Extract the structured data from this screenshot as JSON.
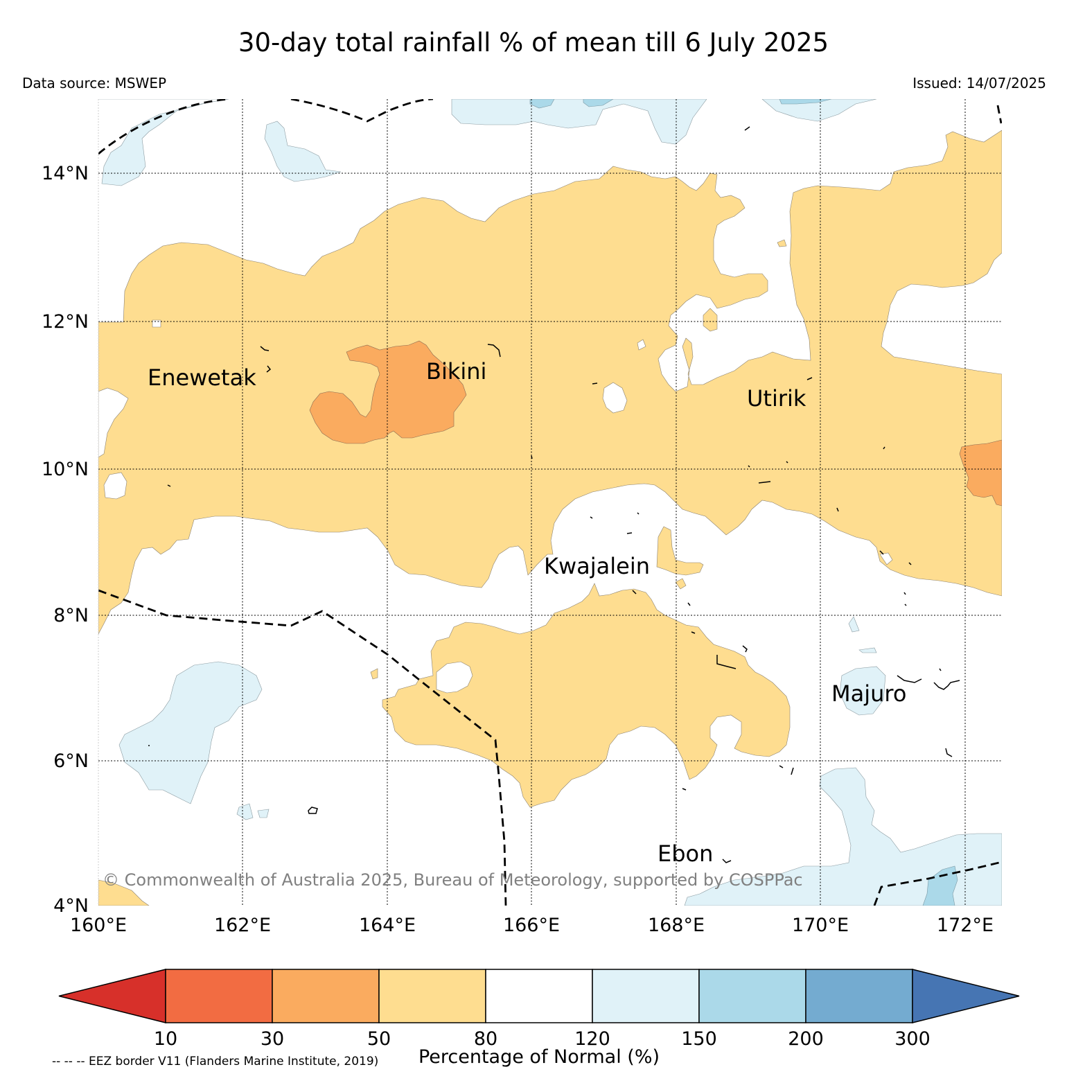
{
  "title": "30-day total rainfall % of mean till 6 July 2025",
  "data_source": "Data source: MSWEP",
  "issued": "Issued: 14/07/2025",
  "copyright": "© Commonwealth of Australia 2025, Bureau of Meteorology, supported by COSPPac",
  "lon_labels": [
    "160°E",
    "162°E",
    "164°E",
    "166°E",
    "168°E",
    "170°E",
    "172°E"
  ],
  "lat_labels": [
    "14°N",
    "12°N",
    "10°N",
    "8°N",
    "6°N",
    "4°N"
  ],
  "places": [
    "Enewetak",
    "Bikini",
    "Utirik",
    "Kwajalein",
    "Majuro",
    "Ebon"
  ],
  "colorbar": {
    "label": "Percentage of Normal (%)",
    "ticks": [
      "10",
      "30",
      "50",
      "80",
      "120",
      "150",
      "200",
      "300"
    ],
    "colors": [
      "#d7302a",
      "#f26c42",
      "#faab5f",
      "#fedd90",
      "#ffffff",
      "#e0f2f8",
      "#abd9e9",
      "#74abd0",
      "#4675b3"
    ]
  },
  "eez_note": "-- -- -- EEZ border V11 (Flanders Marine Institute, 2019)",
  "colors": {
    "below_80": "#fedd90",
    "below_50": "#faab5f",
    "above_120": "#e0f2f8",
    "above_150": "#abd9e9"
  }
}
